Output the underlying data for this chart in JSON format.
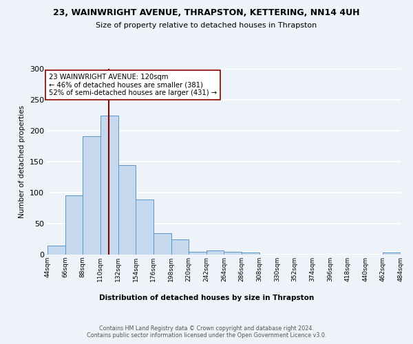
{
  "title1": "23, WAINWRIGHT AVENUE, THRAPSTON, KETTERING, NN14 4UH",
  "title2": "Size of property relative to detached houses in Thrapston",
  "xlabel": "Distribution of detached houses by size in Thrapston",
  "ylabel": "Number of detached properties",
  "bar_values": [
    15,
    96,
    191,
    224,
    144,
    89,
    35,
    25,
    5,
    7,
    4,
    3,
    0,
    0,
    0,
    0,
    0,
    0,
    0,
    3
  ],
  "bin_edges": [
    44,
    66,
    88,
    110,
    132,
    154,
    176,
    198,
    220,
    242,
    264,
    286,
    308,
    330,
    352,
    374,
    396,
    418,
    440,
    462,
    484
  ],
  "tick_labels": [
    "44sqm",
    "66sqm",
    "88sqm",
    "110sqm",
    "132sqm",
    "154sqm",
    "176sqm",
    "198sqm",
    "220sqm",
    "242sqm",
    "264sqm",
    "286sqm",
    "308sqm",
    "330sqm",
    "352sqm",
    "374sqm",
    "396sqm",
    "418sqm",
    "440sqm",
    "462sqm",
    "484sqm"
  ],
  "bar_color": "#c5d8ed",
  "bar_edge_color": "#5a96c8",
  "vline_x": 120,
  "vline_color": "#8b0000",
  "annotation_line1": "23 WAINWRIGHT AVENUE: 120sqm",
  "annotation_line2": "← 46% of detached houses are smaller (381)",
  "annotation_line3": "52% of semi-detached houses are larger (431) →",
  "annotation_box_color": "white",
  "annotation_box_edge": "#8b0000",
  "ylim": [
    0,
    300
  ],
  "yticks": [
    0,
    50,
    100,
    150,
    200,
    250,
    300
  ],
  "footer_text": "Contains HM Land Registry data © Crown copyright and database right 2024.\nContains public sector information licensed under the Open Government Licence v3.0.",
  "background_color": "#eef2f9",
  "grid_color": "white"
}
